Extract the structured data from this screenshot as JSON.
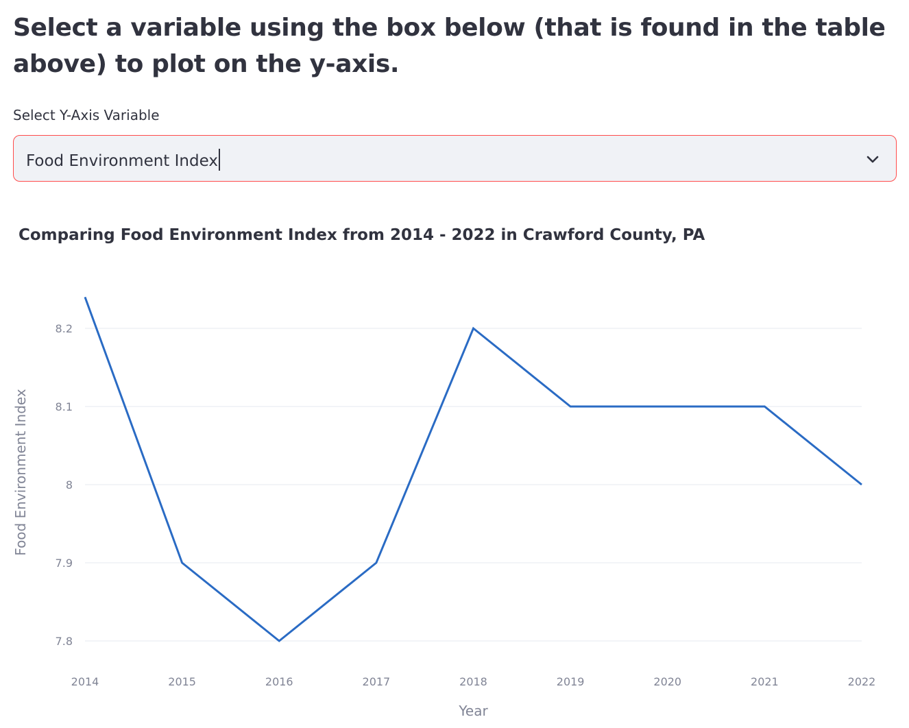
{
  "page": {
    "heading": "Select a variable using the box below (that is found in the table above) to plot on the y-axis."
  },
  "selector": {
    "label": "Select Y-Axis Variable",
    "value": "Food Environment Index",
    "icon": "chevron-down-icon",
    "border_color": "#ff4b4b"
  },
  "chart_data": {
    "type": "line",
    "title": "Comparing Food Environment Index from 2014 - 2022 in Crawford County, PA",
    "xlabel": "Year",
    "ylabel": "Food Environment Index",
    "x": [
      2014,
      2015,
      2016,
      2017,
      2018,
      2019,
      2020,
      2021,
      2022
    ],
    "series": [
      {
        "values": [
          8.24,
          7.9,
          7.8,
          7.9,
          8.2,
          8.1,
          8.1,
          8.1,
          8.0
        ],
        "color": "#2a6bc4"
      }
    ],
    "x_ticks": [
      "2014",
      "2015",
      "2016",
      "2017",
      "2018",
      "2019",
      "2020",
      "2021",
      "2022"
    ],
    "y_ticks": [
      {
        "value": 7.8,
        "label": "7.8"
      },
      {
        "value": 7.9,
        "label": "7.9"
      },
      {
        "value": 8.0,
        "label": "8"
      },
      {
        "value": 8.1,
        "label": "8.1"
      },
      {
        "value": 8.2,
        "label": "8.2"
      }
    ],
    "xlim": [
      2014,
      2022
    ],
    "ylim": [
      7.8,
      8.2
    ],
    "grid": true,
    "grid_color": "#e6e9ef",
    "tick_color": "#808495"
  }
}
